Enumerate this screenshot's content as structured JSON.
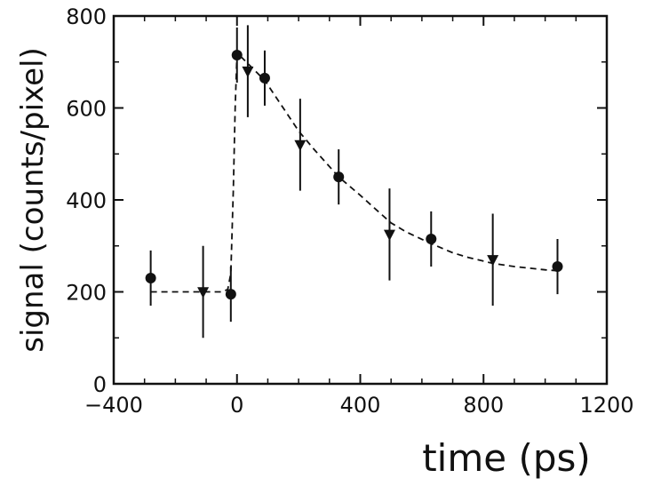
{
  "chart_data": {
    "type": "scatter",
    "xlabel": "time (ps)",
    "ylabel": "signal (counts/pixel)",
    "xlim": [
      -400,
      1200
    ],
    "ylim": [
      0,
      800
    ],
    "x_ticks": [
      -400,
      0,
      400,
      800,
      1200
    ],
    "x_tick_labels": [
      "−400",
      "0",
      "400",
      "800",
      "1200"
    ],
    "y_ticks": [
      0,
      200,
      400,
      600,
      800
    ],
    "y_tick_labels": [
      "0",
      "200",
      "400",
      "600",
      "800"
    ],
    "grid": false,
    "legend": "none",
    "colors": {
      "ink": "#111111",
      "background": "#ffffff"
    },
    "series": [
      {
        "marker": "circle",
        "points": [
          {
            "x": -280,
            "y": 230,
            "err_low": 170,
            "err_high": 290
          },
          {
            "x": -20,
            "y": 195,
            "err_low": 135,
            "err_high": 255
          },
          {
            "x": 0,
            "y": 715,
            "err_low": 655,
            "err_high": 775
          },
          {
            "x": 90,
            "y": 665,
            "err_low": 605,
            "err_high": 725
          },
          {
            "x": 330,
            "y": 450,
            "err_low": 390,
            "err_high": 510
          },
          {
            "x": 630,
            "y": 315,
            "err_low": 255,
            "err_high": 375
          },
          {
            "x": 1040,
            "y": 255,
            "err_low": 195,
            "err_high": 315
          }
        ]
      },
      {
        "marker": "triangle-down",
        "points": [
          {
            "x": -110,
            "y": 200,
            "err_low": 100,
            "err_high": 300
          },
          {
            "x": 35,
            "y": 680,
            "err_low": 580,
            "err_high": 780
          },
          {
            "x": 205,
            "y": 520,
            "err_low": 420,
            "err_high": 620
          },
          {
            "x": 495,
            "y": 325,
            "err_low": 225,
            "err_high": 425
          },
          {
            "x": 830,
            "y": 270,
            "err_low": 170,
            "err_high": 370
          }
        ]
      }
    ],
    "fit_curve": {
      "style": "dashed",
      "points": [
        [
          -280,
          200
        ],
        [
          -50,
          200
        ],
        [
          -30,
          205
        ],
        [
          -20,
          240
        ],
        [
          -12,
          420
        ],
        [
          -6,
          600
        ],
        [
          0,
          720
        ],
        [
          30,
          700
        ],
        [
          60,
          680
        ],
        [
          90,
          660
        ],
        [
          150,
          600
        ],
        [
          200,
          550
        ],
        [
          250,
          510
        ],
        [
          330,
          450
        ],
        [
          400,
          410
        ],
        [
          450,
          380
        ],
        [
          500,
          350
        ],
        [
          550,
          330
        ],
        [
          630,
          305
        ],
        [
          700,
          285
        ],
        [
          750,
          275
        ],
        [
          830,
          262
        ],
        [
          900,
          255
        ],
        [
          1000,
          248
        ],
        [
          1040,
          246
        ]
      ]
    }
  }
}
